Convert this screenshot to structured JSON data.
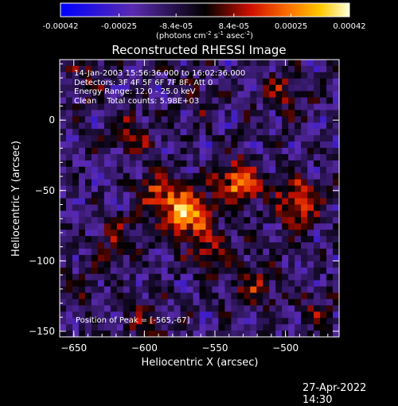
{
  "chart_data": {
    "type": "heatmap",
    "title": "Reconstructed RHESSI Image",
    "xlabel": "Heliocentric X (arcsec)",
    "ylabel": "Heliocentric Y (arcsec)",
    "xlim": [
      -660,
      -462
    ],
    "ylim": [
      -154,
      43
    ],
    "xticks": [
      -650,
      -600,
      -550,
      -500
    ],
    "yticks": [
      -150,
      -100,
      -50,
      0
    ],
    "colorbar": {
      "range": [
        -0.00042,
        0.00042
      ],
      "tick_labels": [
        "-0.00042",
        "-0.00025",
        "-8.4e-05",
        "8.4e-05",
        "0.00025",
        "0.00042"
      ],
      "unit_line1": "(photons cm",
      "unit_exp1": "-2",
      "unit_line2": " s",
      "unit_exp2": "-1",
      "unit_line3": " asec",
      "unit_exp3": "-2",
      "unit_end": ")"
    },
    "peak_position": [
      -565,
      -67
    ],
    "sources": [
      {
        "x": -570,
        "y": -67,
        "value": 0.00042
      },
      {
        "x": -533,
        "y": -45,
        "value": 0.00036
      },
      {
        "x": -490,
        "y": -58,
        "value": 0.0003
      },
      {
        "x": -590,
        "y": -52,
        "value": 0.00024
      },
      {
        "x": -550,
        "y": -95,
        "value": 0.0002
      },
      {
        "x": -610,
        "y": -10,
        "value": 0.00018
      },
      {
        "x": -520,
        "y": -120,
        "value": 0.00016
      },
      {
        "x": -620,
        "y": -85,
        "value": 0.00014
      },
      {
        "x": -500,
        "y": 20,
        "value": 0.00016
      },
      {
        "x": -640,
        "y": 30,
        "value": 0.00012
      },
      {
        "x": -560,
        "y": 15,
        "value": 0.0001
      },
      {
        "x": -480,
        "y": -135,
        "value": 0.0001
      },
      {
        "x": -600,
        "y": -140,
        "value": 0.00012
      },
      {
        "x": -650,
        "y": -120,
        "value": 8e-05
      }
    ]
  },
  "annotations": {
    "line1": "14-Jan-2003 15:56:36.000 to 16:02:36.000",
    "line2": "Detectors: 3F 4F 5F 6F 7F 8F, Att 0",
    "line3": "Energy Range: 12.0 - 25.0 keV",
    "line4": "Clean    Total counts: 5.98E+03",
    "peak": "Position of Peak = [-565,-67]"
  },
  "timestamp": "27-Apr-2022 14:30"
}
